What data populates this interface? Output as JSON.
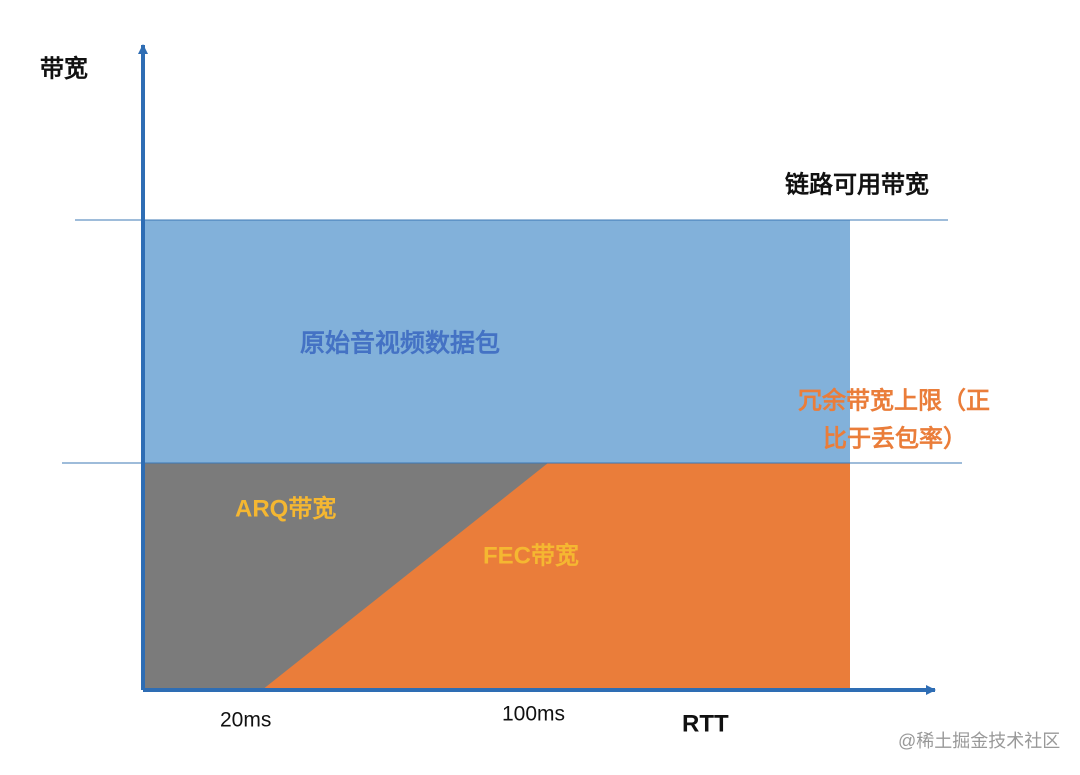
{
  "y_axis_label": "带宽",
  "link_bandwidth_label": "链路可用带宽",
  "regions": {
    "original_packets": "原始音视频数据包",
    "arq": "ARQ带宽",
    "fec": "FEC带宽"
  },
  "redundancy_limit_label": [
    "冗余带宽上限（正",
    "比于丢包率）"
  ],
  "x_axis": {
    "ticks": [
      "20ms",
      "100ms"
    ],
    "label": "RTT"
  },
  "watermark": "@稀土掘金技术社区"
}
